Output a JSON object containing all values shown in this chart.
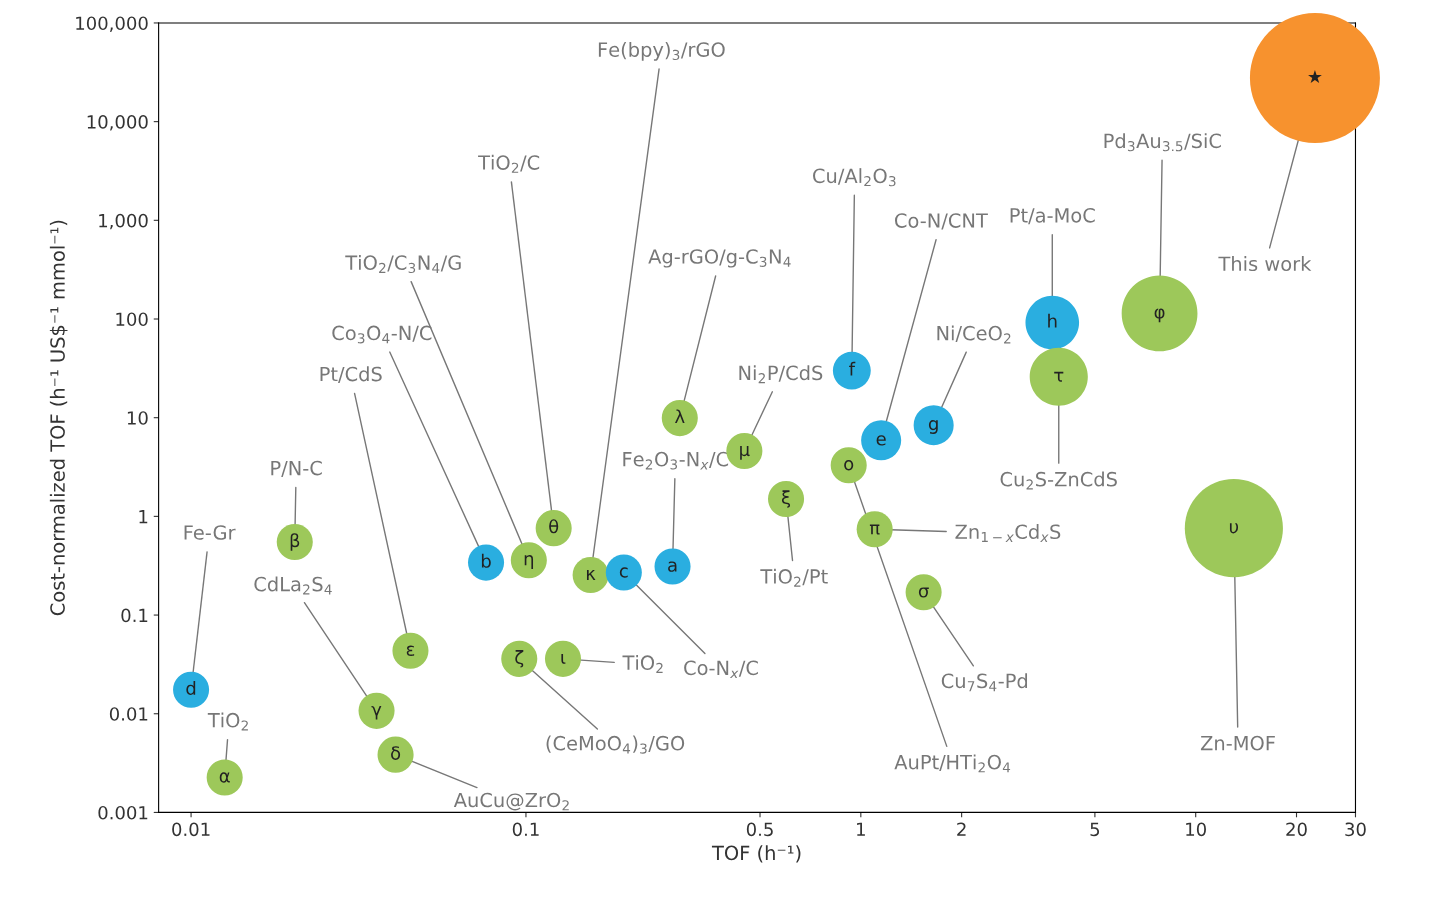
{
  "chart_data": {
    "type": "bubble",
    "xlabel": "TOF (h⁻¹)",
    "ylabel": "Cost-normalized TOF (h⁻¹ US$⁻¹ mmol⁻¹)",
    "log": "xy",
    "grid": false,
    "xlim": [
      0.008,
      30
    ],
    "xticks": [
      0.01,
      0.1,
      0.5,
      1,
      2,
      5,
      10,
      20,
      30
    ],
    "ylim": [
      0.001,
      100000
    ],
    "yticks": [
      0.001,
      0.01,
      0.1,
      1,
      10,
      100,
      {
        "value": 1000,
        "label": "1,000"
      },
      {
        "value": 10000,
        "label": "10,000"
      },
      {
        "value": 100000,
        "label": "100,000"
      }
    ],
    "series": [
      {
        "x": [
          0.0126,
          0.01,
          0.0204,
          0.0452,
          0.0358,
          0.0408,
          0.076,
          0.102,
          0.121,
          0.156,
          0.0955,
          0.129,
          0.196,
          0.274,
          0.288,
          0.449,
          0.598,
          0.94,
          0.92,
          1.1,
          1.15,
          1.65,
          1.54,
          3.73,
          3.9,
          7.8,
          13.0,
          22.7
        ],
        "values": [
          0.00226,
          0.0175,
          0.55,
          0.0435,
          0.0107,
          0.00385,
          0.34,
          0.36,
          0.76,
          0.255,
          0.036,
          0.036,
          0.27,
          0.31,
          9.9,
          4.6,
          1.5,
          30,
          3.3,
          0.74,
          5.9,
          8.4,
          0.17,
          92,
          26,
          114,
          0.76,
          27700
        ],
        "sizes": [
          0.077,
          0.077,
          0.077,
          0.077,
          0.077,
          0.077,
          0.077,
          0.077,
          0.077,
          0.077,
          0.077,
          0.077,
          0.077,
          0.077,
          0.077,
          0.077,
          0.077,
          0.085,
          0.077,
          0.077,
          0.095,
          0.095,
          0.077,
          0.17,
          0.2,
          0.34,
          0.57,
          1
        ],
        "colors": [
          "#9dc85a",
          "#2aaee0",
          "#9dc85a",
          "#9dc85a",
          "#9dc85a",
          "#9dc85a",
          "#2aaee0",
          "#9dc85a",
          "#9dc85a",
          "#9dc85a",
          "#9dc85a",
          "#9dc85a",
          "#2aaee0",
          "#2aaee0",
          "#9dc85a",
          "#9dc85a",
          "#9dc85a",
          "#2aaee0",
          "#9dc85a",
          "#9dc85a",
          "#2aaee0",
          "#2aaee0",
          "#9dc85a",
          "#2aaee0",
          "#9dc85a",
          "#9dc85a",
          "#9dc85a",
          "#f7922e"
        ]
      }
    ],
    "annotations": [
      {
        "text": "TiO$_{2}$",
        "x": 0.0126,
        "y": 0.00226
      },
      {
        "text": "Fe-Gr",
        "x": 0.01,
        "y": 0.0175
      },
      {
        "text": "P/N-C",
        "x": 0.0204,
        "y": 0.55
      },
      {
        "text": "Pt/CdS",
        "x": 0.0452,
        "y": 0.0435
      },
      {
        "text": "CdLa$_{2}$S$_{4}$",
        "x": 0.0358,
        "y": 0.0107
      },
      {
        "text": "AuCu@ZrO$_{2}$",
        "x": 0.0408,
        "y": 0.00385
      },
      {
        "text": "Co$_{3}$O$_{4}$-N/C",
        "x": 0.076,
        "y": 0.34
      },
      {
        "text": "TiO$_{2}$/C$_{3}$N$_{4}$/G",
        "x": 0.102,
        "y": 0.36
      },
      {
        "text": "TiO$_{2}$/C",
        "x": 0.121,
        "y": 0.76
      },
      {
        "text": "Fe(bpy)$_{3}$/rGO",
        "x": 0.156,
        "y": 0.255
      },
      {
        "text": "(CeMoO$_{4}$)$_{3}$/GO",
        "x": 0.0955,
        "y": 0.036
      },
      {
        "text": "TiO$_{2}$",
        "x": 0.129,
        "y": 0.036
      },
      {
        "text": "Co-N$_{x}$/C",
        "x": 0.196,
        "y": 0.27
      },
      {
        "text": "Fe$_{2}$O$_{3}$-N$_{x}$/C",
        "x": 0.274,
        "y": 0.31
      },
      {
        "text": "Ag-rGO/g-C$_{3}$N$_{4}$",
        "x": 0.288,
        "y": 9.9
      },
      {
        "text": "Ni$_{2}$P/CdS",
        "x": 0.449,
        "y": 4.6
      },
      {
        "text": "TiO$_{2}$/Pt",
        "x": 0.598,
        "y": 1.5
      },
      {
        "text": "Cu/Al$_{2}$O$_{3}$",
        "x": 0.94,
        "y": 30
      },
      {
        "text": "AuPt/HTi$_{2}$O$_{4}$",
        "x": 0.92,
        "y": 3.3
      },
      {
        "text": "Zn$_{1−x}$Cd$_{x}$S",
        "x": 1.1,
        "y": 0.74
      },
      {
        "text": "Co-N/CNT",
        "x": 1.15,
        "y": 5.9
      },
      {
        "text": "Ni/CeO$_{2}$",
        "x": 1.65,
        "y": 8.4
      },
      {
        "text": "Cu$_{7}$S$_{4}$-Pd",
        "x": 1.54,
        "y": 0.17
      },
      {
        "text": "Pt/a-MoC",
        "x": 3.73,
        "y": 92
      },
      {
        "text": "Cu$_{2}$S-ZnCdS",
        "x": 3.9,
        "y": 26
      },
      {
        "text": "Pd$_{3}$Au$_{3.5}$/SiC",
        "x": 7.8,
        "y": 114
      },
      {
        "text": "Zn-MOF",
        "x": 13.0,
        "y": 0.76
      },
      {
        "text": "This work",
        "x": 22.7,
        "y": 27700
      },
      {
        "text": "α",
        "x": 0.0126,
        "y": 0.00226
      },
      {
        "text": "d",
        "x": 0.01,
        "y": 0.0175
      },
      {
        "text": "β",
        "x": 0.0204,
        "y": 0.55
      },
      {
        "text": "ε",
        "x": 0.0452,
        "y": 0.0435
      },
      {
        "text": "γ",
        "x": 0.0358,
        "y": 0.0107
      },
      {
        "text": "δ",
        "x": 0.0408,
        "y": 0.00385
      },
      {
        "text": "b",
        "x": 0.076,
        "y": 0.34
      },
      {
        "text": "η",
        "x": 0.102,
        "y": 0.36
      },
      {
        "text": "θ",
        "x": 0.121,
        "y": 0.76
      },
      {
        "text": "κ",
        "x": 0.156,
        "y": 0.255
      },
      {
        "text": "ζ",
        "x": 0.0955,
        "y": 0.036
      },
      {
        "text": "ι",
        "x": 0.129,
        "y": 0.036
      },
      {
        "text": "c",
        "x": 0.196,
        "y": 0.27
      },
      {
        "text": "a",
        "x": 0.274,
        "y": 0.31
      },
      {
        "text": "λ",
        "x": 0.288,
        "y": 9.9
      },
      {
        "text": "μ",
        "x": 0.449,
        "y": 4.6
      },
      {
        "text": "ξ",
        "x": 0.598,
        "y": 1.5
      },
      {
        "text": "f",
        "x": 0.94,
        "y": 30
      },
      {
        "text": "ο",
        "x": 0.92,
        "y": 3.3
      },
      {
        "text": "π",
        "x": 1.1,
        "y": 0.74
      },
      {
        "text": "e",
        "x": 1.15,
        "y": 5.9
      },
      {
        "text": "g",
        "x": 1.65,
        "y": 8.4
      },
      {
        "text": "σ",
        "x": 1.54,
        "y": 0.17
      },
      {
        "text": "h",
        "x": 3.73,
        "y": 92
      },
      {
        "text": "τ",
        "x": 3.9,
        "y": 26
      },
      {
        "text": "φ",
        "x": 7.8,
        "y": 114
      },
      {
        "text": "υ",
        "x": 13.0,
        "y": 0.76
      },
      {
        "text": "★",
        "x": 22.7,
        "y": 27700
      }
    ]
  }
}
